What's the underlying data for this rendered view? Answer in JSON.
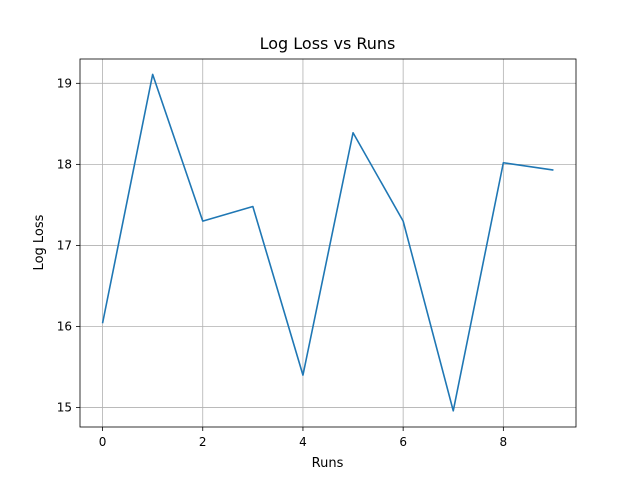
{
  "chart_data": {
    "type": "line",
    "title": "Log Loss vs Runs",
    "xlabel": "Runs",
    "ylabel": "Log Loss",
    "xlim": [
      -0.45,
      9.45
    ],
    "ylim": [
      14.76,
      19.3
    ],
    "grid": true,
    "x_ticks": [
      0,
      2,
      4,
      6,
      8
    ],
    "y_ticks": [
      15,
      16,
      17,
      18,
      19
    ],
    "series": [
      {
        "color": "#1f77b4",
        "x": [
          0,
          1,
          2,
          3,
          4,
          5,
          6,
          7,
          8,
          9
        ],
        "y": [
          16.04,
          19.11,
          17.3,
          17.48,
          15.4,
          18.39,
          17.3,
          14.96,
          18.02,
          17.93
        ]
      }
    ],
    "colors": {
      "grid": "#b0b0b0",
      "axis": "#000000",
      "background": "#ffffff"
    }
  }
}
